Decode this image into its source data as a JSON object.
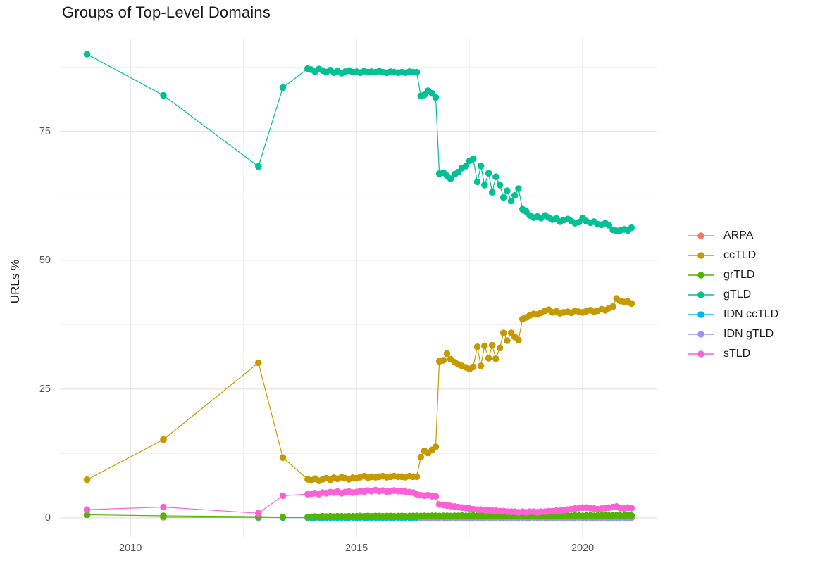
{
  "page": {
    "background": "#ffffff"
  },
  "chart_data": {
    "type": "line",
    "title": "Groups of Top-Level Domains",
    "xlabel": "",
    "ylabel": "URLs %",
    "legend_position": "right",
    "grid": {
      "major_color": "#e3e3e3",
      "minor_color": "#efefef",
      "visible": true
    },
    "x_axis": {
      "range": [
        2008.44,
        2021.65
      ],
      "major_ticks": [
        2010,
        2015,
        2020
      ],
      "tick_labels": [
        "2010",
        "2015",
        "2020"
      ],
      "minor_ticks": [
        2012.5,
        2017.5
      ]
    },
    "y_axis": {
      "range": [
        -3.7,
        93.0
      ],
      "major_ticks": [
        0,
        25,
        50,
        75
      ],
      "tick_labels": [
        "0",
        "25",
        "50",
        "75"
      ],
      "minor_ticks": [
        12.5,
        37.5,
        62.5,
        87.5
      ]
    },
    "draw_order": [
      "ARPA",
      "IDN ccTLD",
      "IDN gTLD",
      "grTLD",
      "sTLD",
      "ccTLD",
      "gTLD"
    ],
    "series": [
      {
        "name": "ARPA",
        "color": "#F8766D",
        "x": [
          2010.73,
          2012.83
        ],
        "y": [
          0.12,
          0.05
        ]
      },
      {
        "name": "ccTLD",
        "color": "#C49A00",
        "x": [
          2009.04,
          2010.73,
          2012.83,
          2013.37,
          2013.92,
          2014.0,
          2014.08,
          2014.17,
          2014.25,
          2014.33,
          2014.42,
          2014.5,
          2014.58,
          2014.67,
          2014.75,
          2014.83,
          2014.92,
          2015.0,
          2015.08,
          2015.17,
          2015.25,
          2015.33,
          2015.42,
          2015.5,
          2015.58,
          2015.67,
          2015.75,
          2015.83,
          2015.92,
          2016.0,
          2016.08,
          2016.17,
          2016.25,
          2016.33,
          2016.42,
          2016.5,
          2016.58,
          2016.67,
          2016.75,
          2016.83,
          2016.92,
          2017.0,
          2017.08,
          2017.17,
          2017.25,
          2017.33,
          2017.42,
          2017.5,
          2017.58,
          2017.67,
          2017.75,
          2017.83,
          2017.92,
          2018.0,
          2018.08,
          2018.17,
          2018.25,
          2018.33,
          2018.42,
          2018.5,
          2018.58,
          2018.67,
          2018.75,
          2018.83,
          2018.92,
          2019.0,
          2019.08,
          2019.17,
          2019.25,
          2019.33,
          2019.42,
          2019.5,
          2019.58,
          2019.67,
          2019.75,
          2019.83,
          2019.92,
          2020.0,
          2020.08,
          2020.17,
          2020.25,
          2020.33,
          2020.42,
          2020.5,
          2020.58,
          2020.67,
          2020.75,
          2020.83,
          2020.92,
          2021.0,
          2021.08
        ],
        "y": [
          7.4,
          15.2,
          30.1,
          11.7,
          7.5,
          7.3,
          7.6,
          7.2,
          7.5,
          7.7,
          7.4,
          7.8,
          7.6,
          7.9,
          7.7,
          7.5,
          7.8,
          7.7,
          7.9,
          8.1,
          7.8,
          8.0,
          7.9,
          8.0,
          8.1,
          7.9,
          8.0,
          8.1,
          8.0,
          8.0,
          7.9,
          8.1,
          8.0,
          8.0,
          11.8,
          13.0,
          12.6,
          13.2,
          13.8,
          30.4,
          30.6,
          31.9,
          30.8,
          30.2,
          29.8,
          29.5,
          29.2,
          28.9,
          29.3,
          33.2,
          29.5,
          33.4,
          31.0,
          33.5,
          30.9,
          33.0,
          35.9,
          34.4,
          35.9,
          35.1,
          34.5,
          38.6,
          38.9,
          39.3,
          39.6,
          39.5,
          39.8,
          40.2,
          40.4,
          39.9,
          40.1,
          39.7,
          39.9,
          40.0,
          39.8,
          40.2,
          40.0,
          39.9,
          40.1,
          40.3,
          40.0,
          40.2,
          40.5,
          40.3,
          40.7,
          41.0,
          42.6,
          42.1,
          41.9,
          42.0,
          41.6
        ]
      },
      {
        "name": "grTLD",
        "color": "#53B400",
        "x": [
          2009.04,
          2010.73,
          2012.83,
          2013.37,
          2013.92,
          2014.0,
          2014.08,
          2014.17,
          2014.25,
          2014.33,
          2014.42,
          2014.5,
          2014.58,
          2014.67,
          2014.75,
          2014.83,
          2014.92,
          2015.0,
          2015.08,
          2015.17,
          2015.25,
          2015.33,
          2015.42,
          2015.5,
          2015.58,
          2015.67,
          2015.75,
          2015.83,
          2015.92,
          2016.0,
          2016.08,
          2016.17,
          2016.25,
          2016.33,
          2016.42,
          2016.5,
          2016.58,
          2016.67,
          2016.75,
          2016.83,
          2016.92,
          2017.0,
          2017.08,
          2017.17,
          2017.25,
          2017.33,
          2017.42,
          2017.5,
          2017.58,
          2017.67,
          2017.75,
          2017.83,
          2017.92,
          2018.0,
          2018.08,
          2018.17,
          2018.25,
          2018.33,
          2018.42,
          2018.5,
          2018.58,
          2018.67,
          2018.75,
          2018.83,
          2018.92,
          2019.0,
          2019.08,
          2019.17,
          2019.25,
          2019.33,
          2019.42,
          2019.5,
          2019.58,
          2019.67,
          2019.75,
          2019.83,
          2019.92,
          2020.0,
          2020.08,
          2020.17,
          2020.25,
          2020.33,
          2020.42,
          2020.5,
          2020.58,
          2020.67,
          2020.75,
          2020.83,
          2020.92,
          2021.0,
          2021.08
        ],
        "y": [
          0.6,
          0.4,
          0.25,
          0.15,
          0.15,
          0.2,
          0.25,
          0.2,
          0.3,
          0.25,
          0.3,
          0.25,
          0.3,
          0.3,
          0.25,
          0.3,
          0.3,
          0.3,
          0.35,
          0.3,
          0.35,
          0.3,
          0.35,
          0.35,
          0.3,
          0.35,
          0.35,
          0.3,
          0.35,
          0.35,
          0.3,
          0.35,
          0.35,
          0.4,
          0.35,
          0.4,
          0.35,
          0.4,
          0.4,
          0.35,
          0.4,
          0.4,
          0.35,
          0.4,
          0.4,
          0.45,
          0.4,
          0.4,
          0.45,
          0.4,
          0.45,
          0.4,
          0.4,
          0.45,
          0.4,
          0.45,
          0.4,
          0.45,
          0.45,
          0.4,
          0.45,
          0.4,
          0.45,
          0.45,
          0.4,
          0.45,
          0.4,
          0.45,
          0.45,
          0.4,
          0.45,
          0.4,
          0.45,
          0.45,
          0.4,
          0.45,
          0.45,
          0.4,
          0.45,
          0.45,
          0.4,
          0.45,
          0.45,
          0.5,
          0.45,
          0.45,
          0.5,
          0.45,
          0.45,
          0.5,
          0.45
        ]
      },
      {
        "name": "gTLD",
        "color": "#00C094",
        "x": [
          2009.04,
          2010.73,
          2012.83,
          2013.37,
          2013.92,
          2014.0,
          2014.08,
          2014.17,
          2014.25,
          2014.33,
          2014.42,
          2014.5,
          2014.58,
          2014.67,
          2014.75,
          2014.83,
          2014.92,
          2015.0,
          2015.08,
          2015.17,
          2015.25,
          2015.33,
          2015.42,
          2015.5,
          2015.58,
          2015.67,
          2015.75,
          2015.83,
          2015.92,
          2016.0,
          2016.08,
          2016.17,
          2016.25,
          2016.33,
          2016.42,
          2016.5,
          2016.58,
          2016.67,
          2016.75,
          2016.83,
          2016.92,
          2017.0,
          2017.08,
          2017.17,
          2017.25,
          2017.33,
          2017.42,
          2017.5,
          2017.58,
          2017.67,
          2017.75,
          2017.83,
          2017.92,
          2018.0,
          2018.08,
          2018.17,
          2018.25,
          2018.33,
          2018.42,
          2018.5,
          2018.58,
          2018.67,
          2018.75,
          2018.83,
          2018.92,
          2019.0,
          2019.08,
          2019.17,
          2019.25,
          2019.33,
          2019.42,
          2019.5,
          2019.58,
          2019.67,
          2019.75,
          2019.83,
          2019.92,
          2020.0,
          2020.08,
          2020.17,
          2020.25,
          2020.33,
          2020.42,
          2020.5,
          2020.58,
          2020.67,
          2020.75,
          2020.83,
          2020.92,
          2021.0,
          2021.08
        ],
        "y": [
          90.0,
          82.0,
          68.2,
          83.5,
          87.2,
          87.0,
          86.6,
          87.1,
          86.8,
          86.5,
          86.9,
          86.4,
          86.7,
          86.3,
          86.6,
          86.8,
          86.5,
          86.6,
          86.4,
          86.7,
          86.5,
          86.6,
          86.5,
          86.7,
          86.5,
          86.4,
          86.6,
          86.5,
          86.4,
          86.5,
          86.4,
          86.6,
          86.5,
          86.5,
          81.9,
          82.1,
          82.9,
          82.4,
          81.6,
          66.8,
          67.0,
          66.4,
          65.8,
          66.7,
          67.1,
          67.9,
          68.3,
          69.3,
          69.7,
          65.2,
          68.3,
          64.6,
          66.9,
          63.2,
          66.2,
          64.6,
          62.2,
          63.5,
          61.5,
          62.6,
          63.9,
          59.9,
          59.5,
          58.7,
          58.3,
          58.5,
          58.2,
          58.7,
          58.3,
          57.9,
          58.1,
          57.5,
          57.8,
          58.0,
          57.6,
          57.2,
          57.4,
          58.2,
          57.6,
          57.3,
          57.5,
          57.0,
          56.9,
          57.2,
          56.8,
          55.9,
          55.7,
          55.8,
          56.0,
          55.8,
          56.3
        ]
      },
      {
        "name": "IDN ccTLD",
        "color": "#00B6EB",
        "x": [
          2012.83,
          2013.37,
          2013.92,
          2014.0,
          2014.08,
          2014.17,
          2014.25,
          2014.33,
          2014.42,
          2014.5,
          2014.58,
          2014.67,
          2014.75,
          2014.83,
          2014.92,
          2015.0,
          2015.08,
          2015.17,
          2015.25,
          2015.33,
          2015.42,
          2015.5,
          2015.58,
          2015.67,
          2015.75,
          2015.83,
          2015.92,
          2016.0,
          2016.08,
          2016.17,
          2016.25,
          2016.33,
          2016.42,
          2016.5,
          2016.58,
          2016.67,
          2016.75,
          2016.83,
          2016.92,
          2017.0,
          2017.08,
          2017.17,
          2017.25,
          2017.33,
          2017.42,
          2017.5,
          2017.58,
          2017.67,
          2017.75,
          2017.83,
          2017.92,
          2018.0,
          2018.08,
          2018.17,
          2018.25,
          2018.33,
          2018.42,
          2018.5,
          2018.58,
          2018.67,
          2018.75,
          2018.83,
          2018.92,
          2019.0,
          2019.08,
          2019.17,
          2019.25,
          2019.33,
          2019.42,
          2019.5,
          2019.58,
          2019.67,
          2019.75,
          2019.83,
          2019.92,
          2020.0,
          2020.08,
          2020.17,
          2020.25,
          2020.33,
          2020.42,
          2020.5,
          2020.58,
          2020.67,
          2020.75,
          2020.83,
          2020.92,
          2021.0,
          2021.08
        ],
        "y": [
          0.1,
          0.05,
          0.05,
          0.05,
          0.05,
          0.05,
          0.05,
          0.05,
          0.05,
          0.05,
          0.05,
          0.05,
          0.05,
          0.05,
          0.05,
          0.05,
          0.05,
          0.05,
          0.05,
          0.05,
          0.05,
          0.05,
          0.05,
          0.05,
          0.05,
          0.05,
          0.05,
          0.05,
          0.05,
          0.05,
          0.05,
          0.05,
          0.05,
          0.05,
          0.05,
          0.05,
          0.05,
          0.05,
          0.05,
          0.05,
          0.05,
          0.05,
          0.05,
          0.05,
          0.05,
          0.05,
          0.05,
          0.05,
          0.05,
          0.05,
          0.05,
          0.05,
          0.05,
          0.05,
          0.05,
          0.05,
          0.05,
          0.05,
          0.05,
          0.05,
          0.05,
          0.05,
          0.05,
          0.05,
          0.05,
          0.05,
          0.05,
          0.05,
          0.05,
          0.05,
          0.05,
          0.05,
          0.05,
          0.05,
          0.05,
          0.05,
          0.05,
          0.05,
          0.05,
          0.05,
          0.05,
          0.05,
          0.05,
          0.05,
          0.05,
          0.05,
          0.05,
          0.05,
          0.05
        ]
      },
      {
        "name": "IDN gTLD",
        "color": "#A58AFF",
        "x": [
          2016.42,
          2016.5,
          2016.58,
          2016.67,
          2016.75,
          2016.83,
          2016.92,
          2017.0,
          2017.08,
          2017.17,
          2017.25,
          2017.33,
          2017.42,
          2017.5,
          2017.58,
          2017.67,
          2017.75,
          2017.83,
          2017.92,
          2018.0,
          2018.08,
          2018.17,
          2018.25,
          2018.33,
          2018.42,
          2018.5,
          2018.58,
          2018.67,
          2018.75,
          2018.83,
          2018.92,
          2019.0,
          2019.08,
          2019.17,
          2019.25,
          2019.33,
          2019.42,
          2019.5,
          2019.58,
          2019.67,
          2019.75,
          2019.83,
          2019.92,
          2020.0,
          2020.08,
          2020.17,
          2020.25,
          2020.33,
          2020.42,
          2020.5,
          2020.58,
          2020.67,
          2020.75,
          2020.83,
          2020.92,
          2021.0,
          2021.08
        ],
        "y": [
          0.08,
          0.08,
          0.08,
          0.08,
          0.08,
          0.08,
          0.08,
          0.08,
          0.08,
          0.08,
          0.08,
          0.08,
          0.08,
          0.08,
          0.08,
          0.08,
          0.08,
          0.08,
          0.08,
          0.08,
          0.08,
          0.08,
          0.08,
          0.08,
          0.08,
          0.08,
          0.08,
          0.08,
          0.08,
          0.08,
          0.08,
          0.08,
          0.08,
          0.08,
          0.08,
          0.08,
          0.08,
          0.08,
          0.08,
          0.08,
          0.08,
          0.08,
          0.08,
          0.08,
          0.08,
          0.08,
          0.08,
          0.08,
          0.08,
          0.08,
          0.08,
          0.08,
          0.08,
          0.08,
          0.08,
          0.08,
          0.08
        ]
      },
      {
        "name": "sTLD",
        "color": "#FB61D7",
        "x": [
          2009.04,
          2010.73,
          2012.83,
          2013.37,
          2013.92,
          2014.0,
          2014.08,
          2014.17,
          2014.25,
          2014.33,
          2014.42,
          2014.5,
          2014.58,
          2014.67,
          2014.75,
          2014.83,
          2014.92,
          2015.0,
          2015.08,
          2015.17,
          2015.25,
          2015.33,
          2015.42,
          2015.5,
          2015.58,
          2015.67,
          2015.75,
          2015.83,
          2015.92,
          2016.0,
          2016.08,
          2016.17,
          2016.25,
          2016.33,
          2016.42,
          2016.5,
          2016.58,
          2016.67,
          2016.75,
          2016.83,
          2016.92,
          2017.0,
          2017.08,
          2017.17,
          2017.25,
          2017.33,
          2017.42,
          2017.5,
          2017.58,
          2017.67,
          2017.75,
          2017.83,
          2017.92,
          2018.0,
          2018.08,
          2018.17,
          2018.25,
          2018.33,
          2018.42,
          2018.5,
          2018.58,
          2018.67,
          2018.75,
          2018.83,
          2018.92,
          2019.0,
          2019.08,
          2019.17,
          2019.25,
          2019.33,
          2019.42,
          2019.5,
          2019.58,
          2019.67,
          2019.75,
          2019.83,
          2019.92,
          2020.0,
          2020.08,
          2020.17,
          2020.25,
          2020.33,
          2020.42,
          2020.5,
          2020.58,
          2020.67,
          2020.75,
          2020.83,
          2020.92,
          2021.0,
          2021.08
        ],
        "y": [
          1.6,
          2.1,
          0.9,
          4.3,
          4.6,
          4.7,
          4.8,
          4.6,
          4.9,
          4.8,
          5.0,
          4.9,
          5.1,
          4.8,
          5.0,
          5.1,
          4.9,
          5.0,
          5.2,
          5.1,
          5.3,
          5.2,
          5.4,
          5.2,
          5.3,
          5.1,
          5.2,
          5.3,
          5.2,
          5.2,
          5.1,
          5.0,
          4.9,
          4.6,
          4.4,
          4.3,
          4.4,
          4.2,
          4.2,
          2.6,
          2.5,
          2.4,
          2.3,
          2.2,
          2.1,
          2.0,
          1.9,
          1.8,
          1.7,
          1.6,
          1.6,
          1.5,
          1.5,
          1.4,
          1.4,
          1.3,
          1.3,
          1.2,
          1.2,
          1.2,
          1.1,
          1.2,
          1.1,
          1.2,
          1.2,
          1.1,
          1.2,
          1.2,
          1.3,
          1.3,
          1.4,
          1.4,
          1.5,
          1.6,
          1.7,
          1.8,
          1.9,
          2.0,
          2.0,
          1.9,
          1.8,
          1.7,
          1.8,
          1.9,
          2.0,
          2.1,
          2.2,
          1.9,
          1.8,
          2.0,
          1.9
        ]
      }
    ]
  }
}
